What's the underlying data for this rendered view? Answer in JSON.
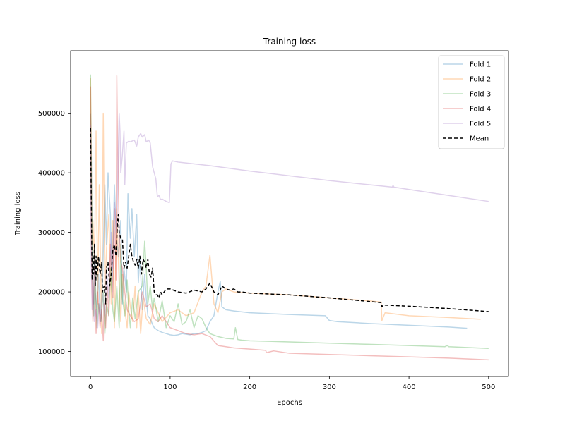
{
  "chart_data": {
    "type": "line",
    "title": "Training loss",
    "xlabel": "Epochs",
    "ylabel": "Training loss",
    "xlim": [
      -25,
      525
    ],
    "ylim": [
      58000,
      605000
    ],
    "xticks": [
      0,
      100,
      200,
      300,
      400,
      500
    ],
    "yticks": [
      100000,
      200000,
      300000,
      400000,
      500000
    ],
    "legend_position": "top-right",
    "grid": false,
    "series": [
      {
        "name": "Fold 1",
        "color": "#1f77b4",
        "alpha": 0.3,
        "dashed": false,
        "x": [
          0,
          1,
          2,
          3,
          4,
          5,
          6,
          8,
          10,
          12,
          15,
          18,
          20,
          22,
          25,
          27,
          30,
          32,
          35,
          38,
          40,
          42,
          45,
          47,
          50,
          52,
          55,
          58,
          60,
          62,
          65,
          68,
          70,
          72,
          75,
          78,
          80,
          85,
          90,
          95,
          100,
          105,
          110,
          115,
          120,
          125,
          130,
          135,
          140,
          145,
          150,
          155,
          160,
          163,
          165,
          170,
          180,
          200,
          250,
          295,
          300,
          310,
          350,
          400,
          450,
          473
        ],
        "y": [
          500000,
          430000,
          300000,
          220000,
          180000,
          250000,
          200000,
          170000,
          230000,
          160000,
          210000,
          380000,
          280000,
          400000,
          330000,
          200000,
          380000,
          300000,
          260000,
          320000,
          180000,
          240000,
          200000,
          365000,
          290000,
          340000,
          260000,
          330000,
          215000,
          260000,
          170000,
          230000,
          190000,
          160000,
          155000,
          145000,
          140000,
          135000,
          132000,
          130000,
          128000,
          127000,
          128000,
          130000,
          129000,
          128000,
          130000,
          130000,
          132000,
          135000,
          150000,
          160000,
          200000,
          218000,
          175000,
          170000,
          168000,
          165000,
          162000,
          160000,
          152000,
          150000,
          147000,
          144000,
          141000,
          139000
        ]
      },
      {
        "name": "Fold 2",
        "color": "#ff7f0e",
        "alpha": 0.3,
        "dashed": false,
        "x": [
          0,
          1,
          2,
          3,
          5,
          7,
          9,
          11,
          14,
          16,
          18,
          20,
          23,
          26,
          28,
          30,
          33,
          36,
          38,
          40,
          43,
          46,
          48,
          50,
          53,
          56,
          58,
          60,
          63,
          66,
          70,
          75,
          80,
          90,
          100,
          110,
          120,
          130,
          140,
          145,
          150,
          155,
          160,
          165,
          170,
          180,
          200,
          250,
          300,
          350,
          365,
          366,
          370,
          400,
          450,
          490
        ],
        "y": [
          560000,
          420000,
          280000,
          320000,
          250000,
          470000,
          180000,
          380000,
          130000,
          500000,
          200000,
          270000,
          330000,
          180000,
          320000,
          140000,
          340000,
          210000,
          150000,
          230000,
          170000,
          140000,
          200000,
          175000,
          150000,
          210000,
          140000,
          200000,
          130000,
          190000,
          155000,
          145000,
          180000,
          150000,
          165000,
          170000,
          160000,
          165000,
          200000,
          210000,
          262000,
          180000,
          165000,
          200000,
          205000,
          200000,
          198000,
          195000,
          190000,
          185000,
          183000,
          152000,
          165000,
          160000,
          157000,
          154000
        ]
      },
      {
        "name": "Fold 3",
        "color": "#2ca02c",
        "alpha": 0.3,
        "dashed": false,
        "x": [
          0,
          1,
          2,
          4,
          6,
          8,
          10,
          13,
          16,
          18,
          20,
          23,
          25,
          28,
          30,
          33,
          36,
          38,
          40,
          43,
          46,
          48,
          50,
          53,
          56,
          60,
          65,
          68,
          70,
          72,
          75,
          78,
          80,
          85,
          90,
          95,
          100,
          105,
          110,
          115,
          120,
          125,
          130,
          135,
          140,
          145,
          150,
          160,
          170,
          180,
          182,
          185,
          190,
          200,
          250,
          300,
          350,
          400,
          445,
          448,
          450,
          500
        ],
        "y": [
          565000,
          380000,
          250000,
          160000,
          220000,
          140000,
          180000,
          150000,
          200000,
          130000,
          180000,
          160000,
          240000,
          170000,
          150000,
          210000,
          140000,
          280000,
          190000,
          160000,
          220000,
          170000,
          140000,
          190000,
          155000,
          200000,
          210000,
          285000,
          240000,
          180000,
          210000,
          170000,
          190000,
          150000,
          185000,
          140000,
          160000,
          150000,
          180000,
          145000,
          150000,
          170000,
          140000,
          160000,
          155000,
          140000,
          130000,
          125000,
          122000,
          121000,
          140000,
          120000,
          119000,
          118000,
          116000,
          114000,
          112000,
          110000,
          108000,
          110000,
          108000,
          105000
        ]
      },
      {
        "name": "Fold 4",
        "color": "#d62728",
        "alpha": 0.3,
        "dashed": false,
        "x": [
          0,
          1,
          2,
          3,
          5,
          7,
          9,
          12,
          14,
          16,
          17,
          19,
          21,
          23,
          25,
          28,
          30,
          32,
          33,
          34,
          36,
          38,
          40,
          43,
          46,
          50,
          55,
          60,
          65,
          70,
          75,
          80,
          85,
          90,
          100,
          110,
          120,
          130,
          140,
          150,
          160,
          170,
          180,
          200,
          220,
          221,
          230,
          250,
          300,
          350,
          400,
          450,
          500
        ],
        "y": [
          545000,
          300000,
          200000,
          150000,
          240000,
          130000,
          200000,
          140000,
          170000,
          118000,
          180000,
          140000,
          210000,
          160000,
          280000,
          190000,
          340000,
          220000,
          563000,
          450000,
          300000,
          250000,
          240000,
          200000,
          170000,
          160000,
          150000,
          155000,
          200000,
          175000,
          180000,
          155000,
          150000,
          160000,
          140000,
          135000,
          130000,
          128000,
          130000,
          125000,
          110000,
          108000,
          106000,
          104000,
          102000,
          98000,
          101000,
          97000,
          95000,
          93000,
          91000,
          89000,
          86000
        ]
      },
      {
        "name": "Fold 5",
        "color": "#9467bd",
        "alpha": 0.3,
        "dashed": false,
        "x": [
          0,
          1,
          2,
          3,
          5,
          7,
          9,
          11,
          13,
          15,
          18,
          20,
          23,
          26,
          28,
          30,
          33,
          35,
          36,
          37,
          38,
          40,
          42,
          43,
          45,
          48,
          50,
          55,
          58,
          60,
          63,
          65,
          68,
          70,
          73,
          75,
          78,
          80,
          82,
          84,
          86,
          88,
          90,
          95,
          99,
          100,
          101,
          103,
          110,
          150,
          200,
          250,
          300,
          350,
          379,
          380,
          381,
          400,
          450,
          500
        ],
        "y": [
          480000,
          250000,
          170000,
          210000,
          150000,
          170000,
          140000,
          180000,
          150000,
          200000,
          160000,
          240000,
          190000,
          300000,
          240000,
          350000,
          300000,
          443000,
          500000,
          470000,
          400000,
          430000,
          470000,
          380000,
          450000,
          453000,
          452000,
          455000,
          445000,
          460000,
          466000,
          460000,
          464000,
          452000,
          455000,
          450000,
          410000,
          400000,
          390000,
          360000,
          362000,
          355000,
          356000,
          352000,
          350000,
          380000,
          415000,
          420000,
          418000,
          412000,
          403000,
          395000,
          387000,
          380000,
          376000,
          379000,
          376000,
          372000,
          362000,
          352000
        ]
      },
      {
        "name": "Mean",
        "color": "#000000",
        "alpha": 1,
        "dashed": true,
        "x": [
          0,
          1,
          2,
          3,
          4,
          5,
          6,
          7,
          8,
          10,
          12,
          14,
          15,
          17,
          19,
          20,
          22,
          24,
          26,
          28,
          30,
          32,
          34,
          35,
          36,
          38,
          40,
          42,
          44,
          46,
          48,
          50,
          52,
          54,
          56,
          58,
          60,
          62,
          64,
          66,
          68,
          70,
          72,
          74,
          76,
          78,
          80,
          82,
          84,
          86,
          88,
          90,
          95,
          100,
          110,
          120,
          130,
          140,
          145,
          150,
          155,
          160,
          165,
          170,
          175,
          180,
          185,
          190,
          200,
          250,
          300,
          350,
          365,
          366,
          368,
          400,
          450,
          500
        ],
        "y": [
          475000,
          350000,
          220000,
          260000,
          230000,
          280000,
          210000,
          260000,
          220000,
          260000,
          230000,
          250000,
          200000,
          210000,
          180000,
          240000,
          250000,
          210000,
          230000,
          270000,
          280000,
          260000,
          320000,
          330000,
          300000,
          290000,
          290000,
          240000,
          250000,
          240000,
          260000,
          280000,
          260000,
          250000,
          245000,
          255000,
          240000,
          260000,
          230000,
          255000,
          250000,
          240000,
          255000,
          230000,
          225000,
          240000,
          200000,
          195000,
          195000,
          190000,
          200000,
          195000,
          205000,
          205000,
          200000,
          198000,
          203000,
          200000,
          205000,
          215000,
          200000,
          195000,
          210000,
          205000,
          203000,
          205000,
          200000,
          200000,
          198000,
          195000,
          190000,
          184000,
          182000,
          175000,
          178000,
          176000,
          172000,
          167000
        ]
      }
    ]
  }
}
